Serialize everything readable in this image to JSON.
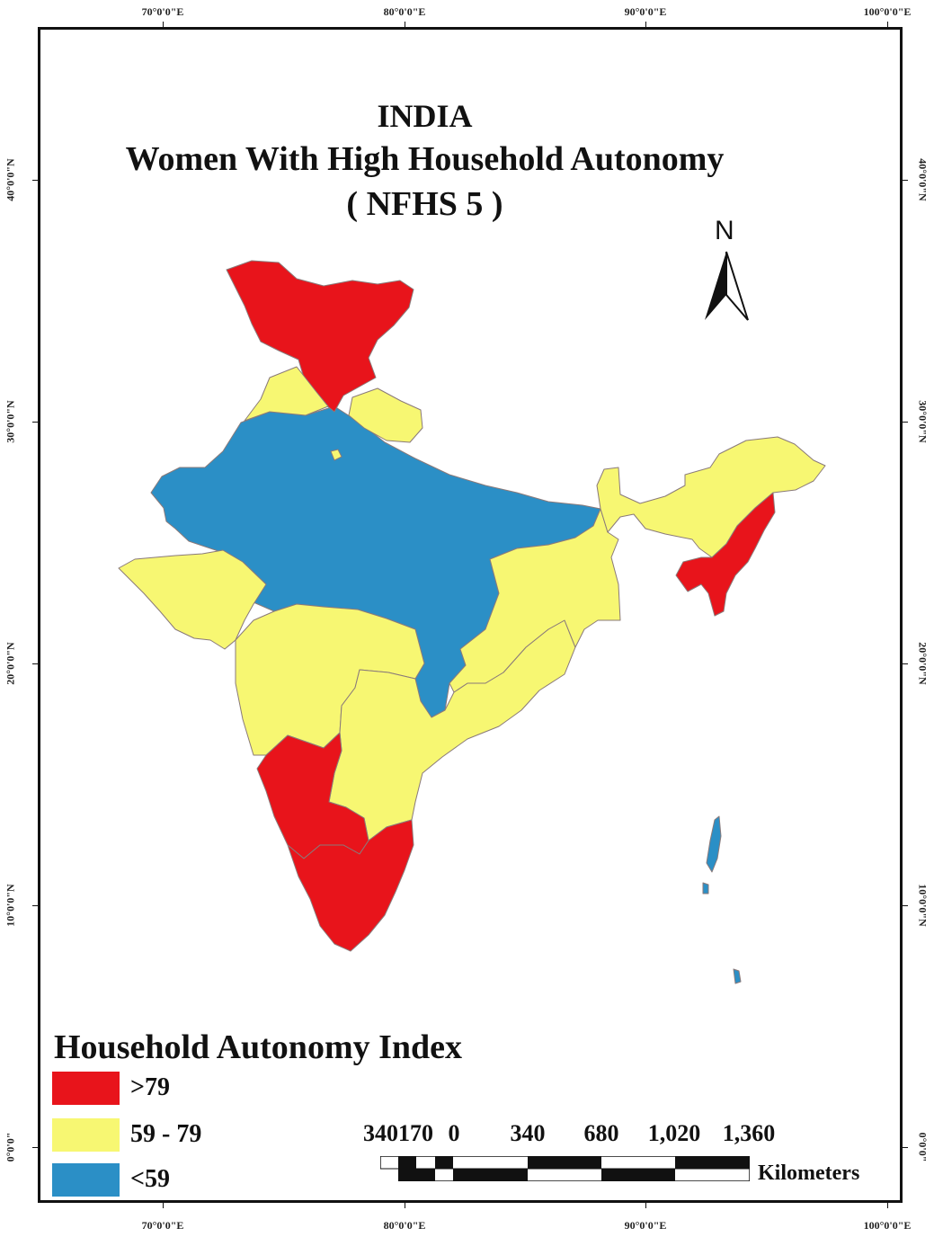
{
  "map": {
    "title_line1": "INDIA",
    "title_line2": "Women With High Household Autonomy",
    "title_line3": "( NFHS 5 )",
    "north_label": "N",
    "graticule": {
      "longitudes": [
        "70°0'0\"E",
        "80°0'0\"E",
        "90°0'0\"E",
        "100°0'0\"E"
      ],
      "latitudes": [
        "40°0'0\"N",
        "30°0'0\"N",
        "20°0'0\"N",
        "10°0'0\"N",
        "0°0'0\""
      ]
    },
    "colors": {
      "high": "#e8141b",
      "medium": "#f7f772",
      "low": "#2b8fc6",
      "border": "#8a7a7a"
    }
  },
  "legend": {
    "title": "Household Autonomy Index",
    "items": [
      {
        "label": ">79",
        "color": "#e8141b"
      },
      {
        "label": "59 - 79",
        "color": "#f7f772"
      },
      {
        "label": "<59",
        "color": "#2b8fc6"
      }
    ]
  },
  "scale": {
    "labels": [
      "340170",
      "0",
      "340",
      "680",
      "1,020",
      "1,360"
    ],
    "unit": "Kilometers"
  }
}
